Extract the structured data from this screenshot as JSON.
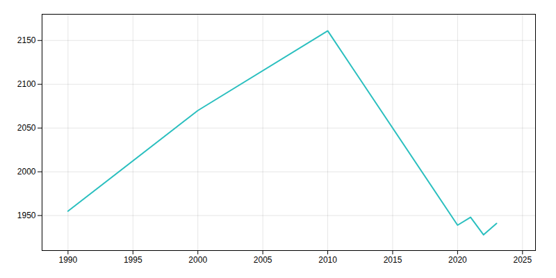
{
  "chart_data": {
    "type": "line",
    "x": [
      1990,
      2000,
      2010,
      2020,
      2021,
      2022,
      2023
    ],
    "values": [
      1955,
      2070,
      2161,
      1939,
      1948,
      1928,
      1941
    ],
    "color": "#2abfbf",
    "xlim": [
      1988,
      2026
    ],
    "ylim": [
      1910,
      2180
    ],
    "xticks": [
      1990,
      1995,
      2000,
      2005,
      2010,
      2015,
      2020,
      2025
    ],
    "yticks": [
      1950,
      2000,
      2050,
      2100,
      2150
    ],
    "grid": true
  }
}
